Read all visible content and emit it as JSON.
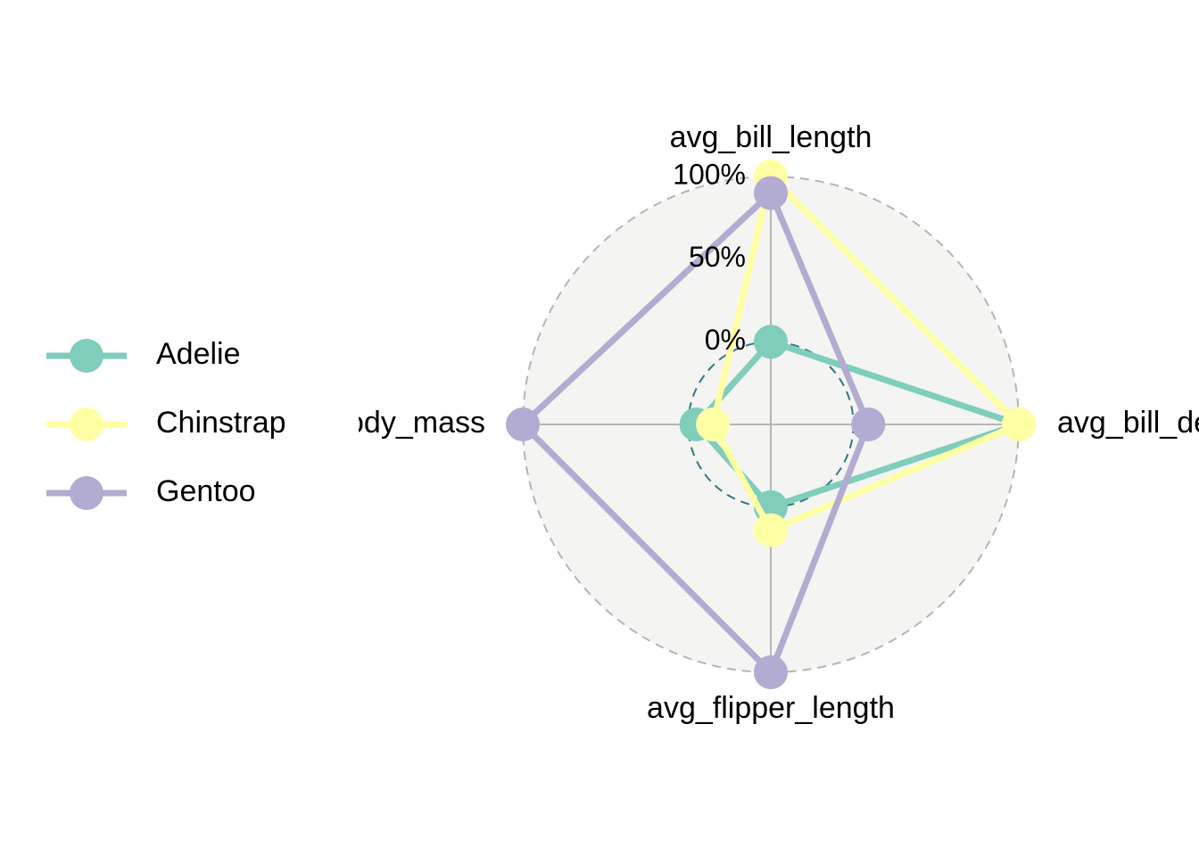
{
  "chart_data": {
    "type": "radar",
    "axes": [
      "avg_bill_length",
      "avg_bill_depth",
      "avg_flipper_length",
      "avg_body_mass"
    ],
    "grid_labels": [
      "0%",
      "50%",
      "100%"
    ],
    "grid_values": [
      0,
      50,
      100
    ],
    "ylim": [
      -50,
      100
    ],
    "series": [
      {
        "name": "Adelie",
        "color": "#7fcdbb",
        "values": [
          0,
          100,
          0,
          -5
        ]
      },
      {
        "name": "Chinstrap",
        "color": "#ffffa3",
        "values": [
          100,
          100,
          14,
          -15
        ]
      },
      {
        "name": "Gentoo",
        "color": "#b2abd2",
        "values": [
          90,
          9,
          100,
          100
        ]
      }
    ],
    "legend_position": "left",
    "background": "#f4f4f2",
    "outer_grid_color": "#b5b5b5",
    "mid_grid_color": "#2f7a80",
    "spoke_color": "#b5b5b5"
  }
}
